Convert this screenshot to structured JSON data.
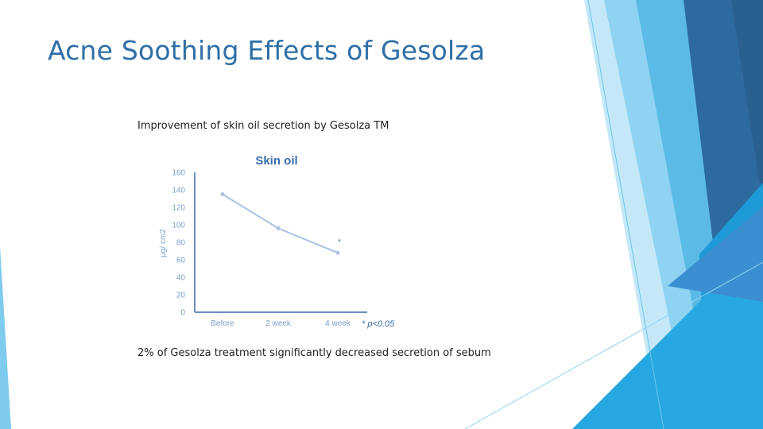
{
  "slide": {
    "title": "Acne Soothing Effects of Gesolza",
    "subtitle": "Improvement of skin oil secretion by Gesolza TM",
    "caption": "2% of Gesolza treatment significantly decreased secretion of sebum"
  },
  "colors": {
    "title": "#2f6fa6",
    "chart_title": "#3a6fb0",
    "series": "#a9c3e2",
    "axis": "#6b8fc4",
    "tick_text": "#7aa0cf",
    "deco_dark": "#2d6a9f",
    "deco_mid": "#3b8fd0",
    "deco_light": "#7fcbee",
    "deco_pale": "#c4e8f8"
  },
  "chart_data": {
    "type": "line",
    "title": "Skin oil",
    "ylabel": "μg/ cm2",
    "xlabel": "",
    "categories": [
      "Before",
      "2 week",
      "4 week"
    ],
    "series": [
      {
        "values": [
          135,
          96,
          68
        ]
      }
    ],
    "yticks": [
      0,
      20,
      40,
      60,
      80,
      100,
      120,
      140,
      160
    ],
    "ylim": [
      0,
      160
    ],
    "annotation": "* p<0.05",
    "significance_marker": "*",
    "significance_at": "4 week",
    "grid": false
  }
}
